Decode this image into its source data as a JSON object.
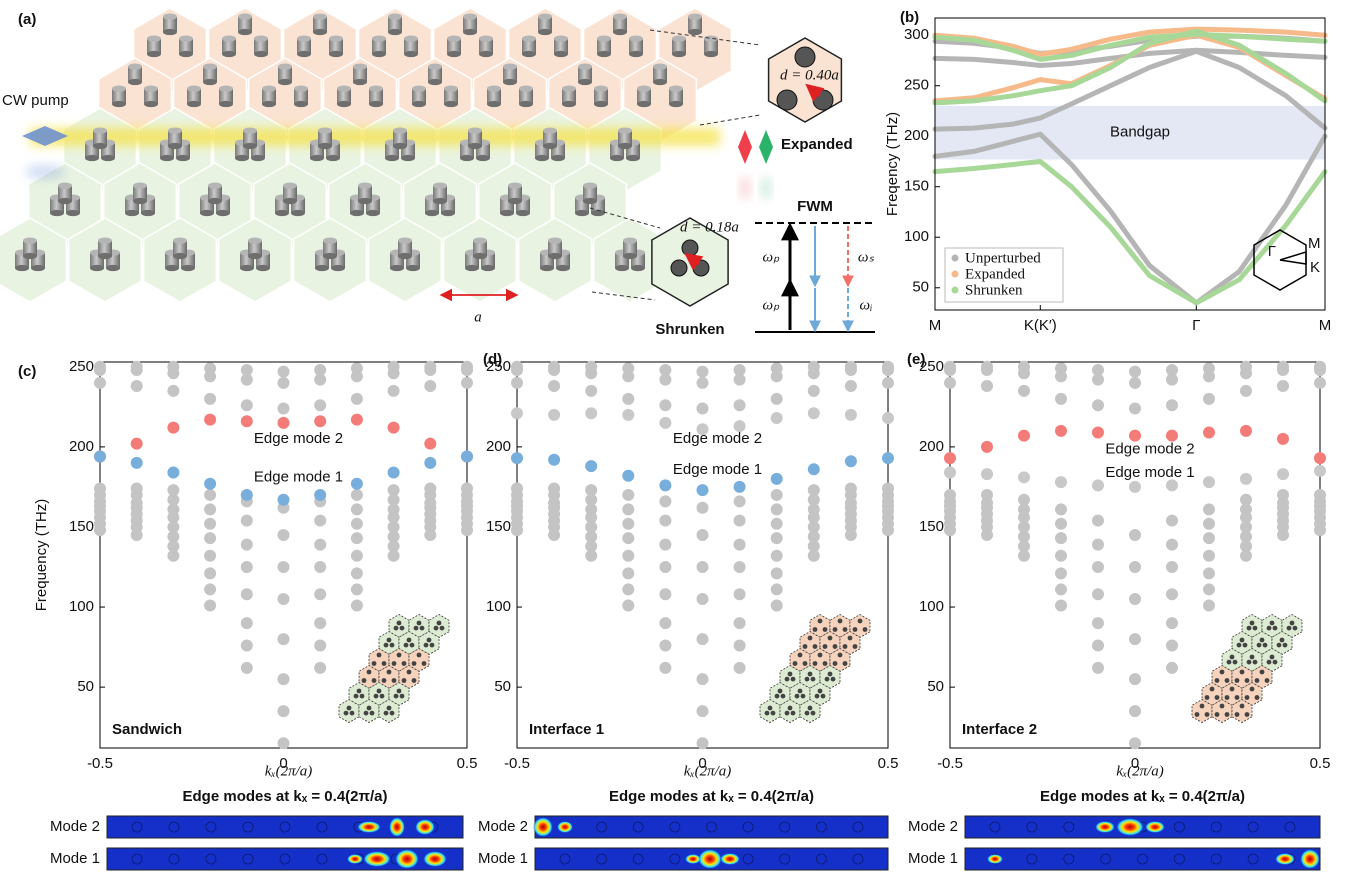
{
  "panel_labels": [
    "(a)",
    "(b)",
    "(c)",
    "(d)",
    "(e)"
  ],
  "diagram": {
    "pump_label": "CW pump",
    "expanded_label": "Expanded",
    "shrunken_label": "Shrunken",
    "expanded_d": "d = 0.40a",
    "shrunken_d": "d = 0.18a",
    "lattice_constant": "a",
    "fwm_title": "FWM",
    "omega_p": "ωₚ",
    "omega_s": "ωₛ",
    "omega_i": "ωᵢ"
  },
  "chart_data": [
    {
      "type": "line",
      "y_label": "Freqency (THz)",
      "x": [
        0,
        0.1,
        0.2,
        0.27,
        0.35,
        0.45,
        0.55,
        0.67,
        0.78,
        0.9,
        1
      ],
      "xlim": [
        0,
        1
      ],
      "xticks": [
        {
          "value": 0,
          "label": "M"
        },
        {
          "value": 0.27,
          "label": "K(K′)"
        },
        {
          "value": 0.67,
          "label": "Γ"
        },
        {
          "value": 1,
          "label": "M"
        }
      ],
      "ylim": [
        28,
        317
      ],
      "yticks": [
        50,
        100,
        150,
        200,
        250,
        300
      ],
      "legend": "lower left",
      "shaded_band": {
        "range": [
          177,
          230
        ],
        "label": "Bandgap",
        "color": "#e4e8f5"
      },
      "inset_labels": [
        "Γ",
        "M",
        "K"
      ],
      "series": [
        {
          "name": "Unperturbed",
          "color": "#b5b5b5",
          "values": [
            [
              294,
              292,
              287,
              282,
              284,
              289,
              295,
              299,
              299,
              297,
              294
            ],
            [
              277,
              276,
              273,
              270,
              272,
              277,
              282,
              285,
              283,
              280,
              278
            ],
            [
              207,
              208,
              212,
              218,
              232,
              250,
              268,
              284,
              268,
              240,
              208
            ],
            [
              180,
              185,
              195,
              202,
              172,
              126,
              72,
              35,
              66,
              132,
              200
            ]
          ]
        },
        {
          "name": "Expanded",
          "color": "#f6b98a",
          "values": [
            [
              300,
              297,
              289,
              281,
              286,
              296,
              303,
              306,
              305,
              303,
              300
            ],
            [
              235,
              238,
              248,
              256,
              252,
              270,
              290,
              300,
              288,
              260,
              237
            ]
          ]
        },
        {
          "name": "Shrunken",
          "color": "#a8d898",
          "values": [
            [
              298,
              295,
              285,
              276,
              280,
              290,
              298,
              301,
              299,
              296,
              294
            ],
            [
              233,
              235,
              240,
              245,
              250,
              268,
              292,
              304,
              290,
              262,
              235
            ],
            [
              165,
              168,
              172,
              175,
              150,
              110,
              62,
              35,
              58,
              112,
              165
            ]
          ]
        }
      ]
    },
    {
      "type": "dot_bands",
      "y_label": "Frequency (THz)",
      "x_label": "kₓ(2π/a)",
      "inset_label": "Sandwich",
      "x": [
        -0.5,
        -0.4,
        -0.3,
        -0.2,
        -0.1,
        0,
        0.1,
        0.2,
        0.3,
        0.4,
        0.5
      ],
      "xlim": [
        -0.5,
        0.5
      ],
      "xticks": [
        -0.5,
        0,
        0.5
      ],
      "ylim": [
        12,
        253
      ],
      "yticks": [
        50,
        100,
        150,
        200,
        250
      ],
      "bulk_color": "#c4c4c4",
      "bands": [
        [
          148,
          145,
          132,
          101,
          62,
          15,
          62,
          101,
          132,
          145,
          148
        ],
        [
          152,
          150,
          138,
          111,
          76,
          35,
          76,
          111,
          138,
          150,
          152
        ],
        [
          156,
          154,
          144,
          121,
          90,
          55,
          90,
          121,
          144,
          154,
          156
        ],
        [
          160,
          158,
          150,
          132,
          108,
          80,
          108,
          132,
          150,
          158,
          160
        ],
        [
          163,
          162,
          156,
          143,
          125,
          105,
          125,
          143,
          156,
          162,
          163
        ],
        [
          166,
          165,
          161,
          152,
          139,
          125,
          139,
          152,
          161,
          165,
          166
        ],
        [
          170,
          170,
          167,
          161,
          154,
          145,
          154,
          161,
          167,
          170,
          170
        ],
        [
          174,
          174,
          173,
          170,
          166,
          162,
          166,
          170,
          173,
          174,
          174
        ],
        [
          240,
          238,
          235,
          230,
          226,
          224,
          226,
          230,
          235,
          238,
          240
        ],
        [
          248,
          248,
          246,
          244,
          242,
          240,
          242,
          244,
          246,
          248,
          248
        ],
        [
          250,
          250,
          250,
          249,
          248,
          247,
          248,
          249,
          250,
          250,
          250
        ]
      ],
      "edge_modes": [
        {
          "label": "Edge mode 2",
          "color": "#f47c78",
          "values": [
            194,
            202,
            212,
            217,
            216,
            215,
            216,
            217,
            212,
            202,
            194
          ]
        },
        {
          "label": "Edge mode 1",
          "color": "#78aedb",
          "values": [
            194,
            190,
            184,
            177,
            170,
            167,
            170,
            177,
            184,
            190,
            194
          ]
        }
      ]
    },
    {
      "type": "dot_bands",
      "x_label": "kₓ(2π/a)",
      "inset_label": "Interface 1",
      "x": [
        -0.5,
        -0.4,
        -0.3,
        -0.2,
        -0.1,
        0,
        0.1,
        0.2,
        0.3,
        0.4,
        0.5
      ],
      "xlim": [
        -0.5,
        0.5
      ],
      "xticks": [
        -0.5,
        0,
        0.5
      ],
      "ylim": [
        12,
        253
      ],
      "yticks": [
        50,
        100,
        150,
        200,
        250
      ],
      "bulk_color": "#c4c4c4",
      "bands": [
        [
          148,
          145,
          132,
          101,
          62,
          15,
          62,
          101,
          132,
          145,
          148
        ],
        [
          152,
          150,
          138,
          111,
          76,
          35,
          76,
          111,
          138,
          150,
          152
        ],
        [
          156,
          154,
          144,
          121,
          90,
          55,
          90,
          121,
          144,
          154,
          156
        ],
        [
          160,
          158,
          150,
          132,
          108,
          80,
          108,
          132,
          150,
          158,
          160
        ],
        [
          163,
          162,
          156,
          143,
          125,
          105,
          125,
          143,
          156,
          162,
          163
        ],
        [
          166,
          165,
          161,
          152,
          139,
          125,
          139,
          152,
          161,
          165,
          166
        ],
        [
          170,
          170,
          167,
          161,
          154,
          145,
          154,
          161,
          167,
          170,
          170
        ],
        [
          174,
          174,
          173,
          170,
          166,
          162,
          166,
          170,
          173,
          174,
          174
        ],
        [
          240,
          238,
          235,
          230,
          226,
          224,
          226,
          230,
          235,
          238,
          240
        ],
        [
          248,
          248,
          246,
          244,
          242,
          240,
          242,
          244,
          246,
          248,
          248
        ],
        [
          250,
          250,
          250,
          249,
          248,
          247,
          248,
          249,
          250,
          250,
          250
        ]
      ],
      "edge_modes": [
        {
          "label": "Edge mode 2",
          "color": "#c8c8c8",
          "values": [
            221,
            220,
            221,
            220,
            215,
            211,
            213,
            218,
            221,
            220,
            218
          ]
        },
        {
          "label": "Edge mode 1",
          "color": "#78aedb",
          "values": [
            193,
            192,
            188,
            182,
            176,
            173,
            175,
            180,
            186,
            191,
            193
          ]
        }
      ]
    },
    {
      "type": "dot_bands",
      "x_label": "kₓ(2π/a)",
      "inset_label": "Interface 2",
      "x": [
        -0.5,
        -0.4,
        -0.3,
        -0.2,
        -0.1,
        0,
        0.1,
        0.2,
        0.3,
        0.4,
        0.5
      ],
      "xlim": [
        -0.5,
        0.5
      ],
      "xticks": [
        -0.5,
        0,
        0.5
      ],
      "ylim": [
        12,
        253
      ],
      "yticks": [
        50,
        100,
        150,
        200,
        250
      ],
      "bulk_color": "#c4c4c4",
      "bands": [
        [
          148,
          145,
          132,
          101,
          62,
          15,
          62,
          101,
          132,
          145,
          148
        ],
        [
          152,
          150,
          138,
          111,
          76,
          35,
          76,
          111,
          138,
          150,
          152
        ],
        [
          156,
          154,
          144,
          121,
          90,
          55,
          90,
          121,
          144,
          154,
          156
        ],
        [
          160,
          158,
          150,
          132,
          108,
          80,
          108,
          132,
          150,
          158,
          160
        ],
        [
          163,
          162,
          156,
          143,
          125,
          105,
          125,
          143,
          156,
          162,
          163
        ],
        [
          166,
          165,
          161,
          152,
          139,
          125,
          139,
          152,
          161,
          165,
          166
        ],
        [
          170,
          170,
          167,
          161,
          154,
          145,
          154,
          161,
          167,
          170,
          170
        ],
        [
          240,
          238,
          235,
          230,
          226,
          224,
          226,
          230,
          235,
          238,
          240
        ],
        [
          248,
          248,
          246,
          244,
          242,
          240,
          242,
          244,
          246,
          248,
          248
        ],
        [
          250,
          250,
          250,
          249,
          248,
          247,
          248,
          249,
          250,
          250,
          250
        ]
      ],
      "edge_modes": [
        {
          "label": "Edge mode 2",
          "color": "#f47c78",
          "values": [
            193,
            200,
            207,
            210,
            209,
            207,
            207,
            209,
            210,
            205,
            193
          ]
        },
        {
          "label": "Edge mode 1",
          "color": "#c8c8c8",
          "values": [
            184,
            183,
            181,
            178,
            176,
            175,
            176,
            178,
            180,
            183,
            185
          ]
        }
      ]
    }
  ],
  "field_maps": [
    {
      "title": "Edge modes at kₓ = 0.4(2π/a)",
      "rows": [
        "Mode 2",
        "Mode 1"
      ]
    },
    {
      "title": "Edge modes at kₓ = 0.4(2π/a)",
      "rows": [
        "Mode 2",
        "Mode 1"
      ]
    },
    {
      "title": "Edge modes at kₓ = 0.4(2π/a)",
      "rows": [
        "Mode 2",
        "Mode 1"
      ]
    }
  ]
}
